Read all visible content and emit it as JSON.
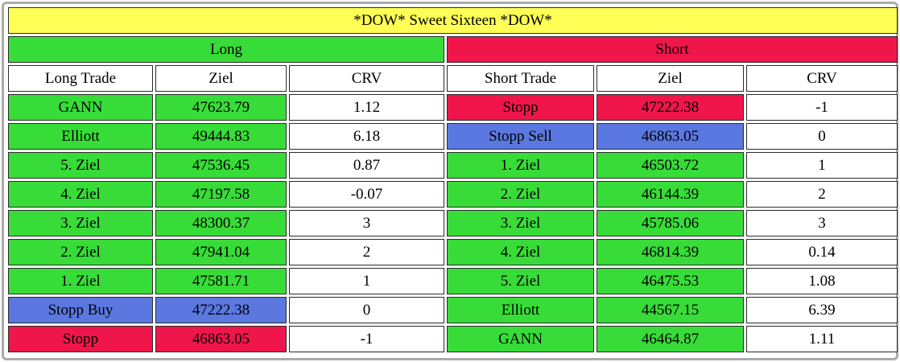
{
  "title": "*DOW* Sweet Sixteen *DOW*",
  "colors": {
    "yellow": "#FFFF55",
    "green": "#38DC38",
    "red": "#F0164B",
    "blue": "#5A78E0",
    "white": "#FFFFFF",
    "cell_border": "#2B2B2B",
    "outer_border": "#ABABAB"
  },
  "sections": {
    "long": {
      "label": "Long"
    },
    "short": {
      "label": "Short"
    }
  },
  "columns": [
    "Long Trade",
    "Ziel",
    "CRV",
    "Short Trade",
    "Ziel",
    "CRV"
  ],
  "rows": [
    {
      "long": {
        "trade": "GANN",
        "ziel": "47623.79",
        "crv": "1.12",
        "color": "green"
      },
      "short": {
        "trade": "Stopp",
        "ziel": "47222.38",
        "crv": "-1",
        "color": "red"
      }
    },
    {
      "long": {
        "trade": "Elliott",
        "ziel": "49444.83",
        "crv": "6.18",
        "color": "green"
      },
      "short": {
        "trade": "Stopp Sell",
        "ziel": "46863.05",
        "crv": "0",
        "color": "blue"
      }
    },
    {
      "long": {
        "trade": "5. Ziel",
        "ziel": "47536.45",
        "crv": "0.87",
        "color": "green"
      },
      "short": {
        "trade": "1. Ziel",
        "ziel": "46503.72",
        "crv": "1",
        "color": "green"
      }
    },
    {
      "long": {
        "trade": "4. Ziel",
        "ziel": "47197.58",
        "crv": "-0.07",
        "color": "green"
      },
      "short": {
        "trade": "2. Ziel",
        "ziel": "46144.39",
        "crv": "2",
        "color": "green"
      }
    },
    {
      "long": {
        "trade": "3. Ziel",
        "ziel": "48300.37",
        "crv": "3",
        "color": "green"
      },
      "short": {
        "trade": "3. Ziel",
        "ziel": "45785.06",
        "crv": "3",
        "color": "green"
      }
    },
    {
      "long": {
        "trade": "2. Ziel",
        "ziel": "47941.04",
        "crv": "2",
        "color": "green"
      },
      "short": {
        "trade": "4. Ziel",
        "ziel": "46814.39",
        "crv": "0.14",
        "color": "green"
      }
    },
    {
      "long": {
        "trade": "1. Ziel",
        "ziel": "47581.71",
        "crv": "1",
        "color": "green"
      },
      "short": {
        "trade": "5. Ziel",
        "ziel": "46475.53",
        "crv": "1.08",
        "color": "green"
      }
    },
    {
      "long": {
        "trade": "Stopp Buy",
        "ziel": "47222.38",
        "crv": "0",
        "color": "blue"
      },
      "short": {
        "trade": "Elliott",
        "ziel": "44567.15",
        "crv": "6.39",
        "color": "green"
      }
    },
    {
      "long": {
        "trade": "Stopp",
        "ziel": "46863.05",
        "crv": "-1",
        "color": "red"
      },
      "short": {
        "trade": "GANN",
        "ziel": "46464.87",
        "crv": "1.11",
        "color": "green"
      }
    }
  ]
}
